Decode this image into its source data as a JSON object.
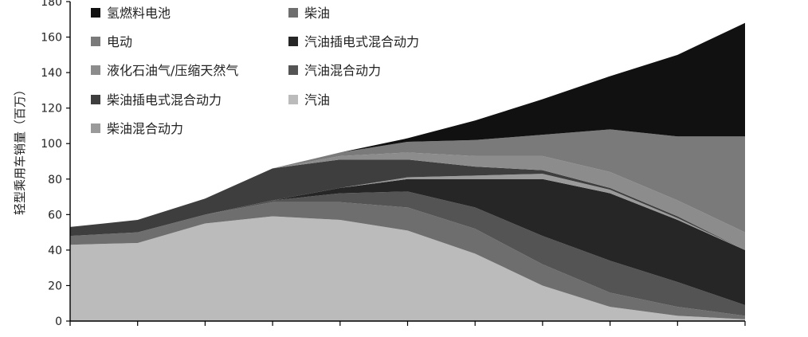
{
  "chart_data": {
    "type": "area",
    "stacked": true,
    "ylabel": "轻型乘用车销量（百万）",
    "ylim": [
      0,
      180
    ],
    "yticks": [
      0,
      20,
      40,
      60,
      80,
      100,
      120,
      140,
      160,
      180
    ],
    "x": [
      0,
      1,
      2,
      3,
      4,
      5,
      6,
      7,
      8,
      9,
      10
    ],
    "grid": false,
    "legend_position": "top-left",
    "series": [
      {
        "name": "汽油",
        "color": "#bbbbbb",
        "values": [
          43,
          44,
          55,
          59,
          57,
          51,
          38,
          20,
          8,
          3,
          1
        ]
      },
      {
        "name": "柴油",
        "color": "#6e6e6e",
        "values": [
          5,
          6,
          5,
          8,
          10,
          13,
          14,
          12,
          8,
          5,
          2
        ]
      },
      {
        "name": "汽油混合动力",
        "color": "#545454",
        "values": [
          0,
          0,
          0,
          1,
          5,
          9,
          12,
          16,
          18,
          14,
          6
        ]
      },
      {
        "name": "汽油插电式混合动力",
        "color": "#262626",
        "values": [
          0,
          0,
          0,
          0,
          3,
          7,
          16,
          32,
          38,
          35,
          31
        ]
      },
      {
        "name": "柴油混合动力",
        "color": "#9a9a9a",
        "values": [
          0,
          0,
          0,
          0,
          0,
          1,
          2,
          3,
          2,
          1,
          0
        ]
      },
      {
        "name": "柴油插电式混合动力",
        "color": "#3e3e3e",
        "values": [
          5,
          7,
          9,
          18,
          16,
          10,
          5,
          2,
          1,
          1,
          0
        ]
      },
      {
        "name": "液化石油气/压缩天然气",
        "color": "#8c8c8c",
        "values": [
          0,
          0,
          0,
          0,
          2,
          4,
          6,
          8,
          9,
          9,
          10
        ]
      },
      {
        "name": "电动",
        "color": "#7a7a7a",
        "values": [
          0,
          0,
          0,
          0,
          2,
          6,
          9,
          12,
          24,
          36,
          54
        ]
      },
      {
        "name": "氢燃料电池",
        "color": "#111111",
        "values": [
          0,
          0,
          0,
          0,
          0,
          2,
          11,
          20,
          30,
          46,
          64
        ]
      }
    ],
    "legend": [
      {
        "series": "氢燃料电池",
        "col": 0,
        "row": 0
      },
      {
        "series": "电动",
        "col": 0,
        "row": 1
      },
      {
        "series": "液化石油气/压缩天然气",
        "col": 0,
        "row": 2
      },
      {
        "series": "柴油插电式混合动力",
        "col": 0,
        "row": 3
      },
      {
        "series": "柴油混合动力",
        "col": 0,
        "row": 4
      },
      {
        "series": "柴油",
        "col": 1,
        "row": 0
      },
      {
        "series": "汽油插电式混合动力",
        "col": 1,
        "row": 1
      },
      {
        "series": "汽油混合动力",
        "col": 1,
        "row": 2
      },
      {
        "series": "汽油",
        "col": 1,
        "row": 3
      }
    ]
  }
}
